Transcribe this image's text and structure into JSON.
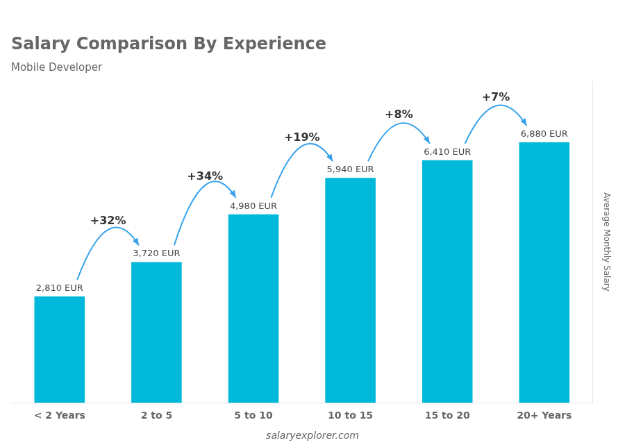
{
  "chart_data": {
    "type": "bar",
    "title": "Salary Comparison By Experience",
    "subtitle": "Mobile Developer",
    "ylabel": "Average Monthly Salary",
    "categories": [
      "< 2 Years",
      "2 to 5",
      "5 to 10",
      "10 to 15",
      "15 to 20",
      "20+ Years"
    ],
    "values": [
      2810,
      3720,
      4980,
      5940,
      6410,
      6880
    ],
    "value_labels": [
      "2,810 EUR",
      "3,720 EUR",
      "4,980 EUR",
      "5,940 EUR",
      "6,410 EUR",
      "6,880 EUR"
    ],
    "data_labels": true,
    "color": "#00b8d9",
    "ylim": [
      0,
      8500
    ],
    "grid": false,
    "tick_labels": "x",
    "annotations": [
      {
        "text": "+32%",
        "from": "< 2 Years",
        "to": "2 to 5"
      },
      {
        "text": "+34%",
        "from": "2 to 5",
        "to": "5 to 10"
      },
      {
        "text": "+19%",
        "from": "5 to 10",
        "to": "10 to 15"
      },
      {
        "text": "+8%",
        "from": "10 to 15",
        "to": "15 to 20"
      },
      {
        "text": "+7%",
        "from": "15 to 20",
        "to": "20+ Years"
      },
      {
        "text": "salaryexplorer.com"
      }
    ]
  }
}
